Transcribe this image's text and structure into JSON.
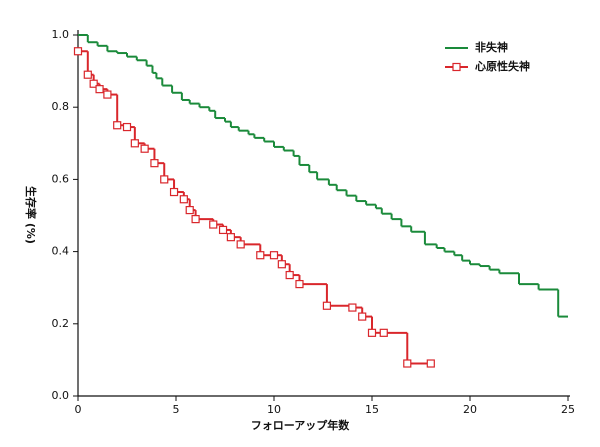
{
  "chart_data": {
    "type": "step",
    "xlabel": "フォローアップ年数",
    "ylabel": "生存率 (%)",
    "xlim": [
      0,
      25
    ],
    "ylim": [
      0,
      1
    ],
    "xticks": [
      0,
      5,
      10,
      15,
      20,
      25
    ],
    "yticks": [
      {
        "value": 0,
        "label": "0.0"
      },
      0.2,
      0.4,
      0.6,
      0.8,
      {
        "value": 1,
        "label": "1.0"
      }
    ],
    "series": [
      {
        "name": "非失神",
        "color": "#1a8a3a",
        "markers": false,
        "x": [
          0,
          0.5,
          1.0,
          1.5,
          2.0,
          2.5,
          3.0,
          3.5,
          3.8,
          4.0,
          4.3,
          4.8,
          5.3,
          5.7,
          6.2,
          6.7,
          7.0,
          7.5,
          7.8,
          8.2,
          8.7,
          9.0,
          9.5,
          10.0,
          10.5,
          11.0,
          11.3,
          11.8,
          12.2,
          12.8,
          13.2,
          13.7,
          14.2,
          14.7,
          15.2,
          15.5,
          16.0,
          16.5,
          17.0,
          17.7,
          18.3,
          18.7,
          19.2,
          19.6,
          20.0,
          20.5,
          21.0,
          21.5,
          22.5,
          23.5,
          24.5,
          25
        ],
        "values": [
          1.0,
          0.98,
          0.97,
          0.955,
          0.95,
          0.94,
          0.93,
          0.915,
          0.895,
          0.88,
          0.86,
          0.84,
          0.82,
          0.81,
          0.8,
          0.79,
          0.77,
          0.76,
          0.745,
          0.735,
          0.725,
          0.715,
          0.705,
          0.69,
          0.68,
          0.665,
          0.64,
          0.62,
          0.6,
          0.585,
          0.57,
          0.555,
          0.54,
          0.53,
          0.52,
          0.505,
          0.49,
          0.47,
          0.455,
          0.42,
          0.41,
          0.4,
          0.39,
          0.375,
          0.365,
          0.36,
          0.35,
          0.34,
          0.31,
          0.295,
          0.22,
          0.22
        ]
      },
      {
        "name": "心原性失神",
        "color": "#d9262b",
        "markers": true,
        "x": [
          0,
          0.5,
          0.8,
          1.1,
          1.5,
          2.0,
          2.5,
          2.9,
          3.4,
          3.9,
          4.4,
          4.9,
          5.4,
          5.7,
          6.0,
          6.9,
          7.4,
          7.8,
          8.3,
          9.3,
          10.0,
          10.4,
          10.8,
          11.3,
          12.7,
          14.0,
          14.5,
          15.0,
          15.6,
          16.8,
          18.0
        ],
        "values": [
          0.955,
          0.89,
          0.865,
          0.85,
          0.835,
          0.75,
          0.745,
          0.7,
          0.685,
          0.645,
          0.6,
          0.565,
          0.545,
          0.515,
          0.49,
          0.475,
          0.46,
          0.44,
          0.42,
          0.39,
          0.39,
          0.365,
          0.335,
          0.31,
          0.25,
          0.245,
          0.22,
          0.175,
          0.175,
          0.09,
          0.09
        ]
      }
    ]
  }
}
